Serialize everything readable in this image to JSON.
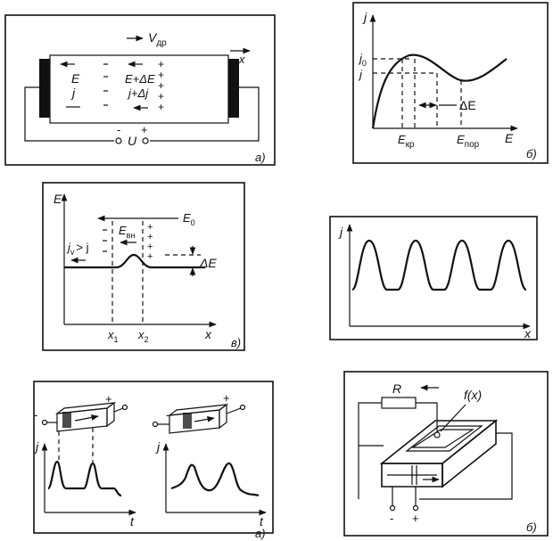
{
  "panel_top_left": {
    "caption": "а)",
    "drift_velocity": "V",
    "drift_sub": "др",
    "axis_x": "x",
    "left_E": "E",
    "left_j": "j",
    "mid_E": "E+ΔE",
    "mid_j": "j+Δj",
    "voltage": "U",
    "minus": "-",
    "plus": "+"
  },
  "panel_top_right": {
    "caption": "б)",
    "axis_y": "j",
    "axis_x": "E",
    "label_j0": "j",
    "label_j0_sub": "0",
    "label_j": "j",
    "delta": "ΔE",
    "e_kr": "E",
    "e_kr_sub": "кр",
    "e_por": "E",
    "e_por_sub": "пор"
  },
  "panel_mid_left": {
    "caption": "в)",
    "axis_y": "E",
    "axis_x": "x",
    "e0": "E",
    "e0_sub": "0",
    "e_vn": "E",
    "e_vn_sub": "вн",
    "jv": "j",
    "jv_sub": "v",
    "jv_rest": "> j",
    "delta": "ΔE",
    "x1": "x",
    "x1_sub": "1",
    "x2": "x",
    "x2_sub": "2"
  },
  "panel_mid_right": {
    "axis_y": "j",
    "axis_x": "x"
  },
  "panel_bottom_left": {
    "caption": "а)",
    "axis_j": "j",
    "axis_t": "t",
    "minus": "-",
    "plus": "+"
  },
  "panel_bottom_right": {
    "caption": "б)",
    "resistor": "R",
    "fx": "f(x)",
    "minus": "-",
    "plus": "+"
  }
}
